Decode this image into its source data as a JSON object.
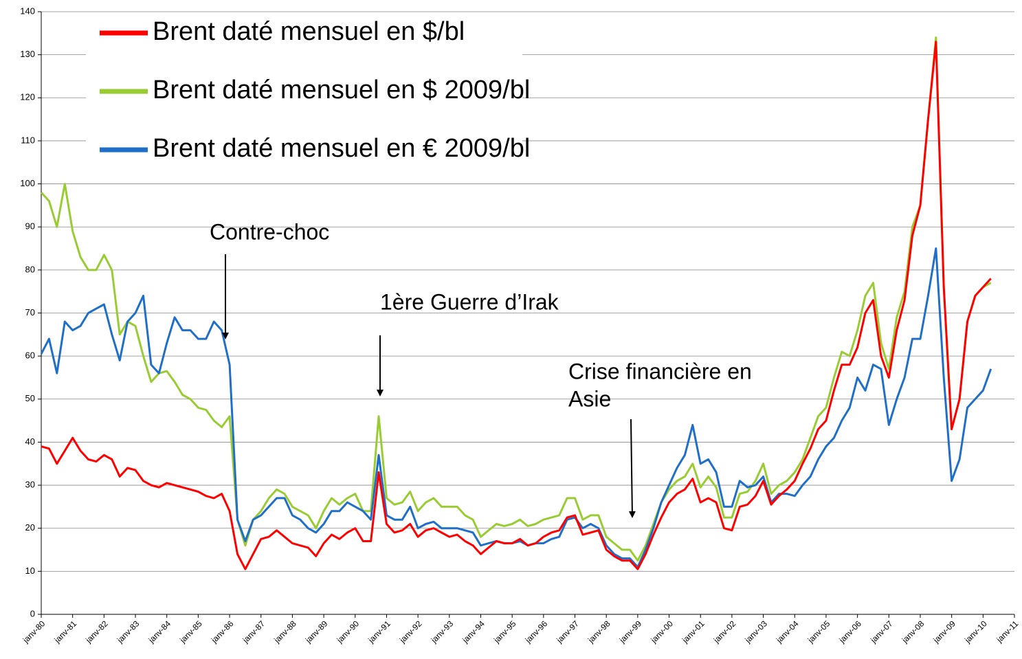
{
  "chart_data": {
    "type": "line",
    "legend": "upper left",
    "grid": true,
    "xlim": [
      1980,
      2011
    ],
    "ylim": [
      0,
      140
    ],
    "yticks": [
      0,
      10,
      20,
      30,
      40,
      50,
      60,
      70,
      80,
      90,
      100,
      110,
      120,
      130,
      140
    ],
    "xticks": [
      {
        "value": 1980,
        "label": "janv-80"
      },
      {
        "value": 1981,
        "label": "janv-81"
      },
      {
        "value": 1982,
        "label": "janv-82"
      },
      {
        "value": 1983,
        "label": "janv-83"
      },
      {
        "value": 1984,
        "label": "janv-84"
      },
      {
        "value": 1985,
        "label": "janv-85"
      },
      {
        "value": 1986,
        "label": "janv-86"
      },
      {
        "value": 1987,
        "label": "janv-87"
      },
      {
        "value": 1988,
        "label": "janv-88"
      },
      {
        "value": 1989,
        "label": "janv-89"
      },
      {
        "value": 1990,
        "label": "janv-90"
      },
      {
        "value": 1991,
        "label": "janv-91"
      },
      {
        "value": 1992,
        "label": "janv-92"
      },
      {
        "value": 1993,
        "label": "janv-93"
      },
      {
        "value": 1994,
        "label": "janv-94"
      },
      {
        "value": 1995,
        "label": "janv-95"
      },
      {
        "value": 1996,
        "label": "janv-96"
      },
      {
        "value": 1997,
        "label": "janv-97"
      },
      {
        "value": 1998,
        "label": "janv-98"
      },
      {
        "value": 1999,
        "label": "janv-99"
      },
      {
        "value": 2000,
        "label": "janv-00"
      },
      {
        "value": 2001,
        "label": "janv-01"
      },
      {
        "value": 2002,
        "label": "janv-02"
      },
      {
        "value": 2003,
        "label": "janv-03"
      },
      {
        "value": 2004,
        "label": "janv-04"
      },
      {
        "value": 2005,
        "label": "janv-05"
      },
      {
        "value": 2006,
        "label": "janv-06"
      },
      {
        "value": 2007,
        "label": "janv-07"
      },
      {
        "value": 2008,
        "label": "janv-08"
      },
      {
        "value": 2009,
        "label": "janv-09"
      },
      {
        "value": 2010,
        "label": "janv-10"
      },
      {
        "value": 2011,
        "label": "janv-11"
      }
    ],
    "annotations": [
      {
        "lines": [
          "Contre-choc"
        ]
      },
      {
        "lines": [
          "1ère Guerre d’Irak"
        ]
      },
      {
        "lines": [
          "Crise financière en",
          "Asie"
        ]
      }
    ],
    "x": [
      1980,
      1980.25,
      1980.5,
      1980.75,
      1981,
      1981.25,
      1981.5,
      1981.75,
      1982,
      1982.25,
      1982.5,
      1982.75,
      1983,
      1983.25,
      1983.5,
      1983.75,
      1984,
      1984.25,
      1984.5,
      1984.75,
      1985,
      1985.25,
      1985.5,
      1985.75,
      1986,
      1986.25,
      1986.5,
      1986.75,
      1987,
      1987.25,
      1987.5,
      1987.75,
      1988,
      1988.25,
      1988.5,
      1988.75,
      1989,
      1989.25,
      1989.5,
      1989.75,
      1990,
      1990.25,
      1990.5,
      1990.75,
      1991,
      1991.25,
      1991.5,
      1991.75,
      1992,
      1992.25,
      1992.5,
      1992.75,
      1993,
      1993.25,
      1993.5,
      1993.75,
      1994,
      1994.25,
      1994.5,
      1994.75,
      1995,
      1995.25,
      1995.5,
      1995.75,
      1996,
      1996.25,
      1996.5,
      1996.75,
      1997,
      1997.25,
      1997.5,
      1997.75,
      1998,
      1998.25,
      1998.5,
      1998.75,
      1999,
      1999.25,
      1999.5,
      1999.75,
      2000,
      2000.25,
      2000.5,
      2000.75,
      2001,
      2001.25,
      2001.5,
      2001.75,
      2002,
      2002.25,
      2002.5,
      2002.75,
      2003,
      2003.25,
      2003.5,
      2003.75,
      2004,
      2004.25,
      2004.5,
      2004.75,
      2005,
      2005.25,
      2005.5,
      2005.75,
      2006,
      2006.25,
      2006.5,
      2006.75,
      2007,
      2007.25,
      2007.5,
      2007.75,
      2008,
      2008.25,
      2008.5,
      2008.75,
      2009,
      2009.25,
      2009.5,
      2009.75,
      2010,
      2010.25
    ],
    "series": [
      {
        "name": "Brent daté mensuel en $/bl",
        "color": "#ff0000",
        "values": [
          39,
          38.5,
          35,
          38,
          41,
          38,
          36,
          35.5,
          37,
          36,
          32,
          34,
          33.5,
          31,
          30,
          29.5,
          30.5,
          30,
          29.5,
          29,
          28.5,
          27.5,
          27,
          28,
          24,
          14,
          10.5,
          14,
          17.5,
          18,
          19.5,
          18,
          16.5,
          16,
          15.5,
          13.5,
          16.5,
          18.5,
          17.5,
          19,
          20,
          17,
          17,
          33,
          21,
          19,
          19.5,
          21,
          18,
          19.5,
          20,
          19,
          18,
          18.5,
          17,
          16,
          14,
          15.5,
          17,
          16.5,
          16.5,
          17.5,
          16,
          16.5,
          18,
          19,
          19.5,
          22.5,
          23,
          18.5,
          19,
          19.5,
          15,
          13.5,
          12.5,
          12.5,
          10.5,
          14,
          18.5,
          22.5,
          26,
          28,
          29,
          31.5,
          26,
          27,
          26,
          20,
          19.5,
          25,
          25.5,
          27.5,
          31,
          25.5,
          27.5,
          29,
          31,
          35,
          38.5,
          43,
          45,
          52,
          58,
          58,
          62,
          70,
          73,
          60,
          55,
          66,
          73,
          88,
          95,
          115,
          133,
          76,
          43,
          50,
          68,
          74,
          76,
          78
        ]
      },
      {
        "name": "Brent daté mensuel en $ 2009/bl",
        "color": "#99cc33",
        "values": [
          98,
          96,
          90,
          100,
          89,
          83,
          80,
          80,
          83.5,
          80,
          65,
          68,
          67,
          60,
          54,
          56,
          56.5,
          54,
          51,
          50,
          48,
          47.5,
          45,
          43.5,
          46,
          22,
          16,
          22,
          24,
          27,
          29,
          28,
          25,
          24,
          23,
          20,
          24,
          27,
          25.5,
          27,
          28,
          24,
          24,
          46,
          27,
          25.5,
          26,
          28.5,
          24,
          26,
          27,
          25,
          25,
          25,
          23,
          22,
          18,
          19.5,
          21,
          20.5,
          21,
          22,
          20.5,
          21,
          22,
          22.5,
          23,
          27,
          27,
          22,
          23,
          23,
          18,
          16.5,
          15,
          15,
          12.5,
          16,
          21,
          26,
          29,
          31,
          32,
          35,
          29.5,
          32,
          29.5,
          22.5,
          22.5,
          28,
          28.5,
          31,
          35,
          28,
          30,
          31,
          33,
          36,
          41,
          46,
          48,
          55,
          61,
          60,
          66,
          74,
          77,
          63,
          57,
          69,
          75,
          90,
          95,
          115,
          134,
          76,
          43,
          50,
          68,
          74,
          76,
          77
        ]
      },
      {
        "name": "Brent daté mensuel en € 2009/bl",
        "color": "#1f6fc8",
        "values": [
          60.5,
          64,
          56,
          68,
          66,
          67,
          70,
          71,
          72,
          65,
          59,
          68,
          70,
          74,
          58,
          56,
          63,
          69,
          66,
          66,
          64,
          64,
          68,
          66,
          58,
          22,
          17,
          22,
          23,
          25,
          27,
          27,
          23,
          22,
          20,
          19,
          21,
          24,
          24,
          26,
          25,
          24,
          22,
          37,
          23,
          22,
          22,
          25,
          20,
          21,
          21.5,
          20,
          20,
          20,
          19.5,
          19,
          16,
          16.5,
          17,
          16.5,
          16.5,
          17,
          16,
          16.5,
          16.5,
          17.5,
          18,
          22,
          22.5,
          20,
          21,
          20,
          16,
          14,
          13,
          13,
          11,
          15,
          20,
          26,
          30,
          34,
          37,
          44,
          35,
          36,
          33,
          25,
          25,
          31,
          29.5,
          30,
          32,
          26,
          28,
          28,
          27.5,
          30,
          32,
          36,
          39,
          41,
          45,
          48,
          55,
          52,
          58,
          57,
          44,
          50,
          55,
          64,
          64,
          74,
          85,
          55,
          31,
          36,
          48,
          50,
          52,
          57
        ]
      }
    ]
  }
}
